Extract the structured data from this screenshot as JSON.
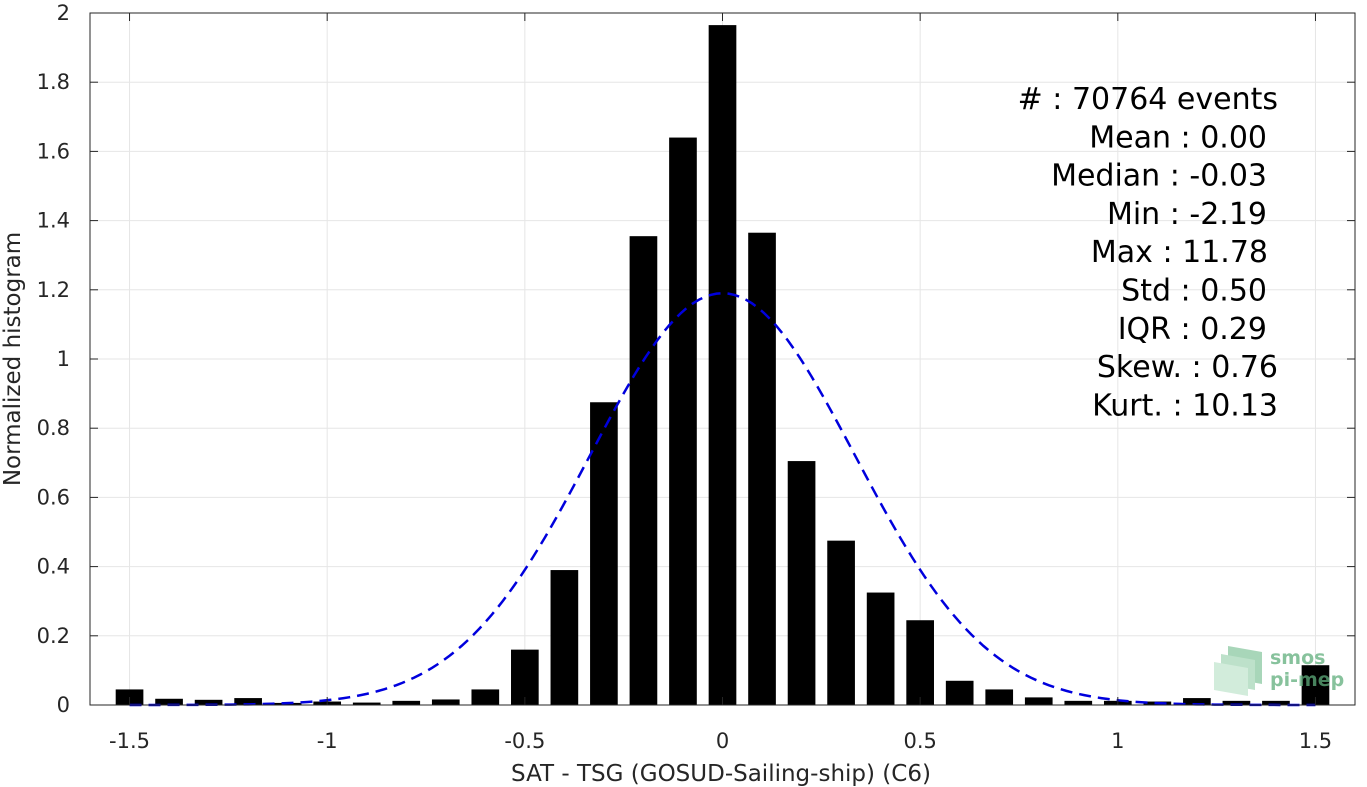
{
  "chart_data": {
    "type": "bar",
    "xlabel": "SAT - TSG (GOSUD-Sailing-ship) (C6)",
    "ylabel": "Normalized histogram",
    "xlim": [
      -1.6,
      1.6
    ],
    "ylim": [
      0,
      2
    ],
    "grid": true,
    "xticks": [
      -1.5,
      -1,
      -0.5,
      0,
      0.5,
      1,
      1.5
    ],
    "xtick_labels": [
      "-1.5",
      "-1",
      "-0.5",
      "0",
      "0.5",
      "1",
      "1.5"
    ],
    "yticks": [
      0,
      0.2,
      0.4,
      0.6,
      0.8,
      1,
      1.2,
      1.4,
      1.6,
      1.8,
      2
    ],
    "ytick_labels": [
      "0",
      "0.2",
      "0.4",
      "0.6",
      "0.8",
      "1",
      "1.2",
      "1.4",
      "1.6",
      "1.8",
      "2"
    ],
    "bar_width": 0.07,
    "bar_color": "#000000",
    "bins": [
      {
        "x": -1.5,
        "y": 0.045
      },
      {
        "x": -1.4,
        "y": 0.018
      },
      {
        "x": -1.3,
        "y": 0.015
      },
      {
        "x": -1.2,
        "y": 0.02
      },
      {
        "x": -1.1,
        "y": 0.006
      },
      {
        "x": -1.0,
        "y": 0.01
      },
      {
        "x": -0.9,
        "y": 0.007
      },
      {
        "x": -0.8,
        "y": 0.012
      },
      {
        "x": -0.7,
        "y": 0.016
      },
      {
        "x": -0.6,
        "y": 0.045
      },
      {
        "x": -0.5,
        "y": 0.16
      },
      {
        "x": -0.4,
        "y": 0.39
      },
      {
        "x": -0.3,
        "y": 0.875
      },
      {
        "x": -0.2,
        "y": 1.355
      },
      {
        "x": -0.1,
        "y": 1.64
      },
      {
        "x": 0.0,
        "y": 1.965
      },
      {
        "x": 0.1,
        "y": 1.365
      },
      {
        "x": 0.2,
        "y": 0.705
      },
      {
        "x": 0.3,
        "y": 0.475
      },
      {
        "x": 0.4,
        "y": 0.325
      },
      {
        "x": 0.5,
        "y": 0.245
      },
      {
        "x": 0.6,
        "y": 0.07
      },
      {
        "x": 0.7,
        "y": 0.045
      },
      {
        "x": 0.8,
        "y": 0.022
      },
      {
        "x": 0.9,
        "y": 0.012
      },
      {
        "x": 1.0,
        "y": 0.012
      },
      {
        "x": 1.1,
        "y": 0.01
      },
      {
        "x": 1.2,
        "y": 0.02
      },
      {
        "x": 1.3,
        "y": 0.012
      },
      {
        "x": 1.4,
        "y": 0.012
      },
      {
        "x": 1.5,
        "y": 0.115
      }
    ],
    "fit_curve": {
      "style": "dashed",
      "color": "#0000dd",
      "type": "gaussian",
      "mean": 0.0,
      "std": 0.335,
      "peak": 1.19,
      "x_range": [
        -1.5,
        1.5
      ]
    },
    "stats": [
      "#  : 70764 events",
      "Mean : 0.00",
      "Median : -0.03",
      "Min : -2.19",
      "Max : 11.78",
      "Std : 0.50",
      "IQR : 0.29",
      "Skew. : 0.76",
      "Kurt. : 10.13"
    ]
  },
  "logo": {
    "line1": "smos",
    "line2": "pi-mep",
    "color": "#5fae7c"
  }
}
